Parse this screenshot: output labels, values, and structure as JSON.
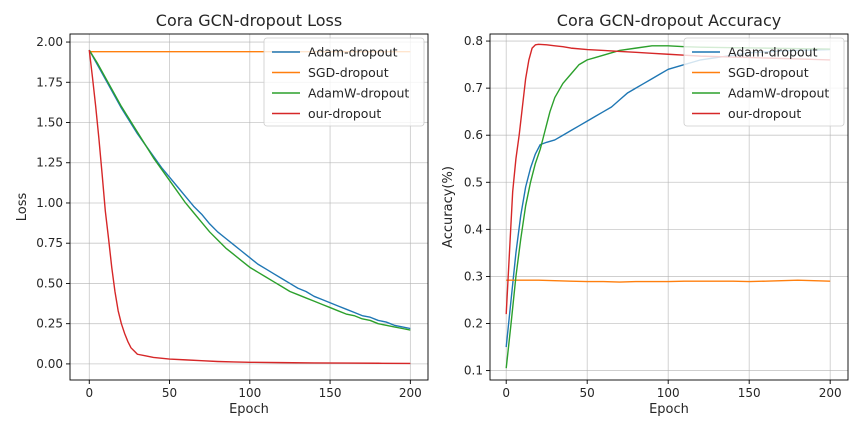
{
  "chart_data": [
    {
      "type": "line",
      "title": "Cora GCN-dropout Loss",
      "xlabel": "Epoch",
      "ylabel": "Loss",
      "xlim": [
        -12,
        211
      ],
      "ylim": [
        -0.1,
        2.05
      ],
      "xticks": [
        0,
        50,
        100,
        150,
        200
      ],
      "yticks": [
        0.0,
        0.25,
        0.5,
        0.75,
        1.0,
        1.25,
        1.5,
        1.75,
        2.0
      ],
      "xtick_labels": [
        "0",
        "50",
        "100",
        "150",
        "200"
      ],
      "ytick_labels": [
        "0.00",
        "0.25",
        "0.50",
        "0.75",
        "1.00",
        "1.25",
        "1.50",
        "1.75",
        "2.00"
      ],
      "grid": true,
      "legend": "top-right",
      "series": [
        {
          "name": "Adam-dropout",
          "color": "#1f77b4",
          "x": [
            0,
            5,
            10,
            15,
            20,
            25,
            30,
            35,
            40,
            45,
            50,
            55,
            60,
            65,
            70,
            75,
            80,
            85,
            90,
            95,
            100,
            105,
            110,
            115,
            120,
            125,
            130,
            135,
            140,
            145,
            150,
            155,
            160,
            165,
            170,
            175,
            180,
            185,
            190,
            195,
            200
          ],
          "y": [
            1.95,
            1.86,
            1.77,
            1.68,
            1.59,
            1.51,
            1.43,
            1.36,
            1.29,
            1.22,
            1.16,
            1.1,
            1.04,
            0.98,
            0.93,
            0.87,
            0.82,
            0.78,
            0.74,
            0.7,
            0.66,
            0.62,
            0.59,
            0.56,
            0.53,
            0.5,
            0.47,
            0.45,
            0.42,
            0.4,
            0.38,
            0.36,
            0.34,
            0.32,
            0.3,
            0.29,
            0.27,
            0.26,
            0.24,
            0.23,
            0.22
          ]
        },
        {
          "name": "SGD-dropout",
          "color": "#ff7f0e",
          "x": [
            0,
            10,
            20,
            30,
            40,
            50,
            60,
            70,
            80,
            90,
            100,
            110,
            120,
            130,
            140,
            150,
            160,
            170,
            180,
            190,
            200
          ],
          "y": [
            1.94,
            1.94,
            1.94,
            1.94,
            1.94,
            1.94,
            1.94,
            1.94,
            1.94,
            1.94,
            1.94,
            1.94,
            1.94,
            1.94,
            1.94,
            1.94,
            1.94,
            1.94,
            1.94,
            1.94,
            1.94
          ]
        },
        {
          "name": "AdamW-dropout",
          "color": "#2ca02c",
          "x": [
            0,
            5,
            10,
            15,
            20,
            25,
            30,
            35,
            40,
            45,
            50,
            55,
            60,
            65,
            70,
            75,
            80,
            85,
            90,
            95,
            100,
            105,
            110,
            115,
            120,
            125,
            130,
            135,
            140,
            145,
            150,
            155,
            160,
            165,
            170,
            175,
            180,
            185,
            190,
            195,
            200
          ],
          "y": [
            1.95,
            1.87,
            1.78,
            1.69,
            1.6,
            1.52,
            1.44,
            1.36,
            1.28,
            1.21,
            1.14,
            1.07,
            1.0,
            0.94,
            0.88,
            0.82,
            0.77,
            0.72,
            0.68,
            0.64,
            0.6,
            0.57,
            0.54,
            0.51,
            0.48,
            0.45,
            0.43,
            0.41,
            0.39,
            0.37,
            0.35,
            0.33,
            0.31,
            0.3,
            0.28,
            0.27,
            0.25,
            0.24,
            0.23,
            0.22,
            0.21
          ]
        },
        {
          "name": "our-dropout",
          "color": "#d62728",
          "x": [
            0,
            2,
            4,
            6,
            8,
            10,
            12,
            14,
            16,
            18,
            20,
            22,
            24,
            26,
            28,
            30,
            35,
            40,
            50,
            60,
            70,
            80,
            90,
            100,
            120,
            140,
            160,
            180,
            200
          ],
          "y": [
            1.95,
            1.78,
            1.6,
            1.4,
            1.18,
            0.95,
            0.78,
            0.6,
            0.45,
            0.33,
            0.25,
            0.19,
            0.14,
            0.1,
            0.08,
            0.06,
            0.05,
            0.04,
            0.03,
            0.025,
            0.02,
            0.015,
            0.012,
            0.01,
            0.008,
            0.006,
            0.005,
            0.004,
            0.003
          ]
        }
      ]
    },
    {
      "type": "line",
      "title": "Cora GCN-dropout Accuracy",
      "xlabel": "Epoch",
      "ylabel": "Accuracy(%)",
      "xlim": [
        -10,
        211
      ],
      "ylim": [
        0.08,
        0.815
      ],
      "xticks": [
        0,
        50,
        100,
        150,
        200
      ],
      "yticks": [
        0.1,
        0.2,
        0.3,
        0.4,
        0.5,
        0.6,
        0.7,
        0.8
      ],
      "xtick_labels": [
        "0",
        "50",
        "100",
        "150",
        "200"
      ],
      "ytick_labels": [
        "0.1",
        "0.2",
        "0.3",
        "0.4",
        "0.5",
        "0.6",
        "0.7",
        "0.8"
      ],
      "grid": true,
      "legend": "top-right",
      "series": [
        {
          "name": "Adam-dropout",
          "color": "#1f77b4",
          "x": [
            0,
            3,
            6,
            9,
            12,
            15,
            18,
            21,
            25,
            30,
            35,
            40,
            45,
            50,
            55,
            60,
            65,
            70,
            75,
            80,
            85,
            90,
            95,
            100,
            105,
            110,
            115,
            120,
            130,
            140,
            150,
            160,
            170,
            180,
            190,
            200
          ],
          "y": [
            0.15,
            0.25,
            0.35,
            0.43,
            0.49,
            0.53,
            0.56,
            0.58,
            0.585,
            0.59,
            0.6,
            0.61,
            0.62,
            0.63,
            0.64,
            0.65,
            0.66,
            0.675,
            0.69,
            0.7,
            0.71,
            0.72,
            0.73,
            0.74,
            0.745,
            0.75,
            0.755,
            0.76,
            0.765,
            0.77,
            0.775,
            0.777,
            0.779,
            0.78,
            0.781,
            0.782
          ]
        },
        {
          "name": "SGD-dropout",
          "color": "#ff7f0e",
          "x": [
            0,
            10,
            20,
            30,
            40,
            50,
            60,
            70,
            80,
            90,
            100,
            110,
            120,
            130,
            140,
            150,
            160,
            170,
            180,
            190,
            200
          ],
          "y": [
            0.292,
            0.292,
            0.292,
            0.291,
            0.29,
            0.289,
            0.289,
            0.288,
            0.289,
            0.289,
            0.289,
            0.29,
            0.29,
            0.29,
            0.29,
            0.289,
            0.29,
            0.291,
            0.292,
            0.291,
            0.29
          ]
        },
        {
          "name": "AdamW-dropout",
          "color": "#2ca02c",
          "x": [
            0,
            3,
            6,
            9,
            12,
            15,
            18,
            21,
            24,
            27,
            30,
            35,
            40,
            45,
            50,
            55,
            60,
            65,
            70,
            80,
            90,
            100,
            110,
            120,
            140,
            160,
            180,
            200
          ],
          "y": [
            0.105,
            0.2,
            0.3,
            0.38,
            0.45,
            0.5,
            0.54,
            0.57,
            0.61,
            0.65,
            0.68,
            0.71,
            0.73,
            0.75,
            0.76,
            0.765,
            0.77,
            0.775,
            0.78,
            0.785,
            0.79,
            0.79,
            0.788,
            0.787,
            0.786,
            0.785,
            0.784,
            0.783
          ]
        },
        {
          "name": "our-dropout",
          "color": "#d62728",
          "x": [
            0,
            2,
            4,
            6,
            8,
            10,
            12,
            14,
            16,
            18,
            20,
            25,
            30,
            35,
            40,
            50,
            60,
            70,
            80,
            90,
            100,
            110,
            120,
            140,
            160,
            180,
            200
          ],
          "y": [
            0.22,
            0.35,
            0.48,
            0.55,
            0.6,
            0.66,
            0.72,
            0.76,
            0.785,
            0.792,
            0.793,
            0.792,
            0.79,
            0.788,
            0.785,
            0.782,
            0.78,
            0.778,
            0.776,
            0.774,
            0.772,
            0.77,
            0.768,
            0.766,
            0.764,
            0.762,
            0.76
          ]
        }
      ]
    }
  ]
}
